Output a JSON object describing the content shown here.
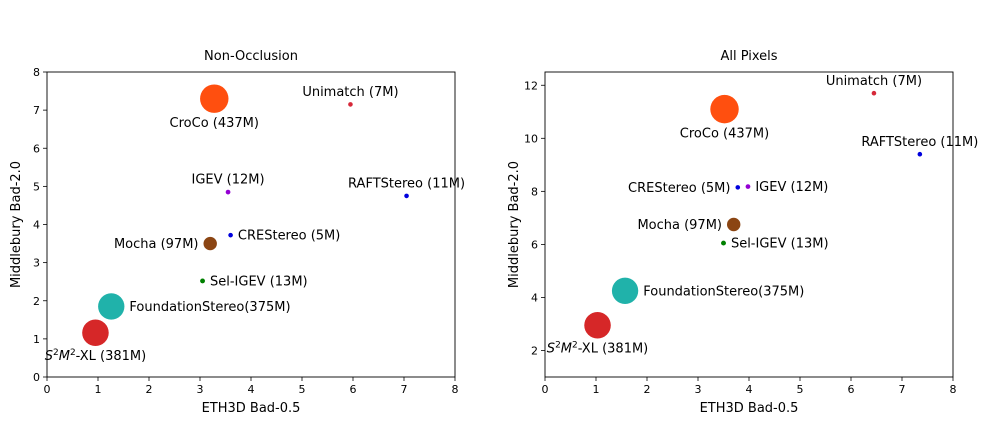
{
  "chart_data": [
    {
      "type": "scatter",
      "title": "Non-Occlusion",
      "xlabel": "ETH3D Bad-0.5",
      "ylabel": "Middlebury Bad-2.0",
      "xlim": [
        0,
        8
      ],
      "ylim": [
        0,
        8
      ],
      "xticks": [
        0,
        1,
        2,
        3,
        4,
        5,
        6,
        7,
        8
      ],
      "yticks": [
        0,
        1,
        2,
        3,
        4,
        5,
        6,
        7,
        8
      ],
      "grid": false,
      "points": [
        {
          "name": "Unimatch (7M)",
          "x": 5.95,
          "y": 7.15,
          "params_m": 7,
          "color": "#d62839",
          "label_pos": "above"
        },
        {
          "name": "CroCo (437M)",
          "x": 3.28,
          "y": 7.3,
          "params_m": 437,
          "color": "#ff4f0f",
          "label_pos": "below"
        },
        {
          "name": "IGEV (12M)",
          "x": 3.55,
          "y": 4.85,
          "params_m": 12,
          "color": "#9400d3",
          "label_pos": "above"
        },
        {
          "name": "RAFTStereo (11M)",
          "x": 7.05,
          "y": 4.75,
          "params_m": 11,
          "color": "#0000dd",
          "label_pos": "above"
        },
        {
          "name": "CREStereo (5M)",
          "x": 3.6,
          "y": 3.72,
          "params_m": 5,
          "color": "#0000dd",
          "label_pos": "right"
        },
        {
          "name": "Mocha (97M)",
          "x": 3.2,
          "y": 3.5,
          "params_m": 97,
          "color": "#8b4513",
          "label_pos": "left"
        },
        {
          "name": "Sel-IGEV (13M)",
          "x": 3.05,
          "y": 2.52,
          "params_m": 13,
          "color": "#008000",
          "label_pos": "right"
        },
        {
          "name": "FoundationStereo(375M)",
          "x": 1.26,
          "y": 1.85,
          "params_m": 375,
          "color": "#20b2aa",
          "label_pos": "right"
        },
        {
          "name": "S2M2-XL (381M)",
          "x": 0.95,
          "y": 1.16,
          "params_m": 381,
          "color": "#d62728",
          "label_pos": "below"
        }
      ]
    },
    {
      "type": "scatter",
      "title": "All Pixels",
      "xlabel": "ETH3D Bad-0.5",
      "ylabel": "Middlebury Bad-2.0",
      "xlim": [
        0,
        8
      ],
      "ylim": [
        1,
        12.5
      ],
      "xticks": [
        0,
        1,
        2,
        3,
        4,
        5,
        6,
        7,
        8
      ],
      "yticks": [
        2,
        4,
        6,
        8,
        10,
        12
      ],
      "grid": false,
      "points": [
        {
          "name": "Unimatch (7M)",
          "x": 6.45,
          "y": 11.7,
          "params_m": 7,
          "color": "#d62839",
          "label_pos": "above"
        },
        {
          "name": "CroCo (437M)",
          "x": 3.52,
          "y": 11.1,
          "params_m": 437,
          "color": "#ff4f0f",
          "label_pos": "below"
        },
        {
          "name": "RAFTStereo (11M)",
          "x": 7.35,
          "y": 9.4,
          "params_m": 11,
          "color": "#0000dd",
          "label_pos": "above"
        },
        {
          "name": "CREStereo (5M)",
          "x": 3.78,
          "y": 8.15,
          "params_m": 5,
          "color": "#0000dd",
          "label_pos": "left"
        },
        {
          "name": "IGEV (12M)",
          "x": 3.98,
          "y": 8.18,
          "params_m": 12,
          "color": "#9400d3",
          "label_pos": "right"
        },
        {
          "name": "Mocha (97M)",
          "x": 3.7,
          "y": 6.75,
          "params_m": 97,
          "color": "#8b4513",
          "label_pos": "left"
        },
        {
          "name": "Sel-IGEV (13M)",
          "x": 3.5,
          "y": 6.05,
          "params_m": 13,
          "color": "#008000",
          "label_pos": "right"
        },
        {
          "name": "FoundationStereo(375M)",
          "x": 1.57,
          "y": 4.25,
          "params_m": 375,
          "color": "#20b2aa",
          "label_pos": "right"
        },
        {
          "name": "S2M2-XL (381M)",
          "x": 1.03,
          "y": 2.95,
          "params_m": 381,
          "color": "#d62728",
          "label_pos": "below"
        }
      ]
    }
  ]
}
